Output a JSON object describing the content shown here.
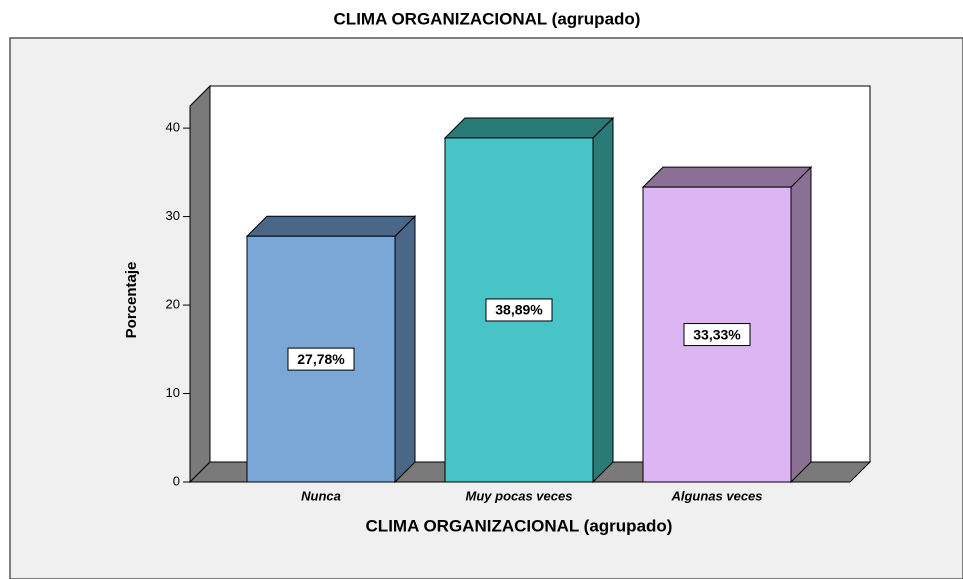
{
  "chart_data": {
    "type": "bar3d",
    "title": "CLIMA ORGANIZACIONAL (agrupado)",
    "x_label": "CLIMA ORGANIZACIONAL (agrupado)",
    "y_label": "Porcentaje",
    "categories": [
      "Nunca",
      "Muy pocas veces",
      "Algunas veces"
    ],
    "values": [
      27.78,
      38.89,
      33.33
    ],
    "value_labels": [
      "27,78%",
      "38,89%",
      "33,33%"
    ],
    "colors": [
      "#7ba7d7",
      "#48c3c6",
      "#dcb6f2"
    ],
    "shade_colors": [
      "#4a6788",
      "#2a7a78",
      "#8a7094"
    ],
    "ylim": [
      0,
      42.5
    ],
    "yticks": [
      0,
      10,
      20,
      30,
      40
    ]
  }
}
